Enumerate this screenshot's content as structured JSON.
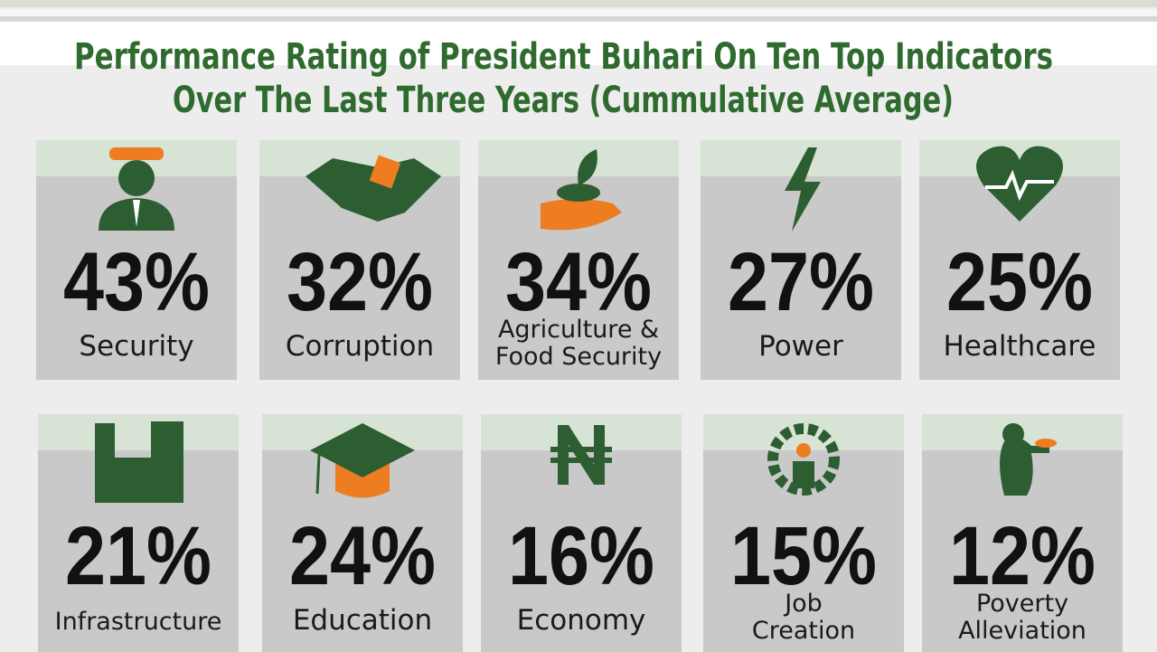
{
  "header": {
    "title": [
      "Performance Rating of President Buhari On Ten Top Indicators",
      "Over The Last Three Years (Cummulative Average)"
    ]
  },
  "tiles": [
    {
      "value": "43%",
      "label": [
        "Security"
      ]
    },
    {
      "value": "32%",
      "label": [
        "Corruption"
      ]
    },
    {
      "value": "34%",
      "label": [
        "Agriculture &",
        "Food Security"
      ]
    },
    {
      "value": "27%",
      "label": [
        "Power"
      ]
    },
    {
      "value": "25%",
      "label": [
        "Healthcare"
      ]
    },
    {
      "value": "21%",
      "label": [
        "Infrastructure"
      ]
    },
    {
      "value": "24%",
      "label": [
        "Education"
      ]
    },
    {
      "value": "16%",
      "label": [
        "Economy"
      ]
    },
    {
      "value": "15%",
      "label": [
        "Job",
        "Creation"
      ]
    },
    {
      "value": "12%",
      "label": [
        "Poverty",
        "Alleviation"
      ]
    }
  ]
}
